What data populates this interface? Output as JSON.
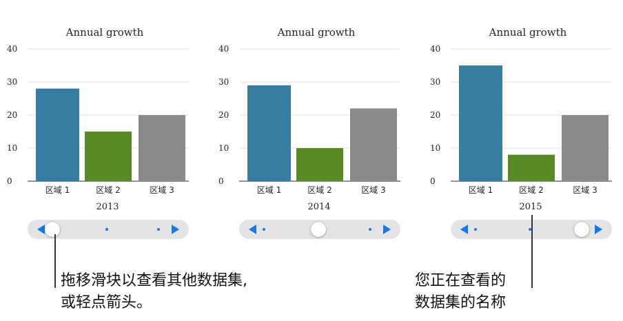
{
  "chart_data": [
    {
      "type": "bar",
      "title": "Annual growth",
      "categories": [
        "区域 1",
        "区域 2",
        "区域 3"
      ],
      "values": [
        28,
        15,
        20
      ],
      "xlabel": "2013",
      "ylim": [
        0,
        40
      ],
      "yticks": [
        0,
        10,
        20,
        30,
        40
      ],
      "colors": [
        "#357da1",
        "#578a27",
        "#8a8a8a"
      ]
    },
    {
      "type": "bar",
      "title": "Annual growth",
      "categories": [
        "区域 1",
        "区域 2",
        "区域 3"
      ],
      "values": [
        29,
        10,
        22
      ],
      "xlabel": "2014",
      "ylim": [
        0,
        40
      ],
      "yticks": [
        0,
        10,
        20,
        30,
        40
      ],
      "colors": [
        "#357da1",
        "#578a27",
        "#8a8a8a"
      ]
    },
    {
      "type": "bar",
      "title": "Annual growth",
      "categories": [
        "区域 1",
        "区域 2",
        "区域 3"
      ],
      "values": [
        35,
        8,
        20
      ],
      "xlabel": "2015",
      "ylim": [
        0,
        40
      ],
      "yticks": [
        0,
        10,
        20,
        30,
        40
      ],
      "colors": [
        "#357da1",
        "#578a27",
        "#8a8a8a"
      ]
    }
  ],
  "sliders": [
    {
      "thumb_position": 0,
      "dots": [
        1,
        2
      ]
    },
    {
      "thumb_position": 1,
      "dots": [
        0,
        2
      ]
    },
    {
      "thumb_position": 2,
      "dots": [
        0,
        1
      ]
    }
  ],
  "annotations": {
    "slider_note_line1": "拖移滑块以查看其他数据集,",
    "slider_note_line2": "或轻点箭头。",
    "name_note_line1": "您正在查看的",
    "name_note_line2": "数据集的名称"
  },
  "colors": {
    "accent": "#1677e6",
    "track": "#e3e3e6"
  }
}
